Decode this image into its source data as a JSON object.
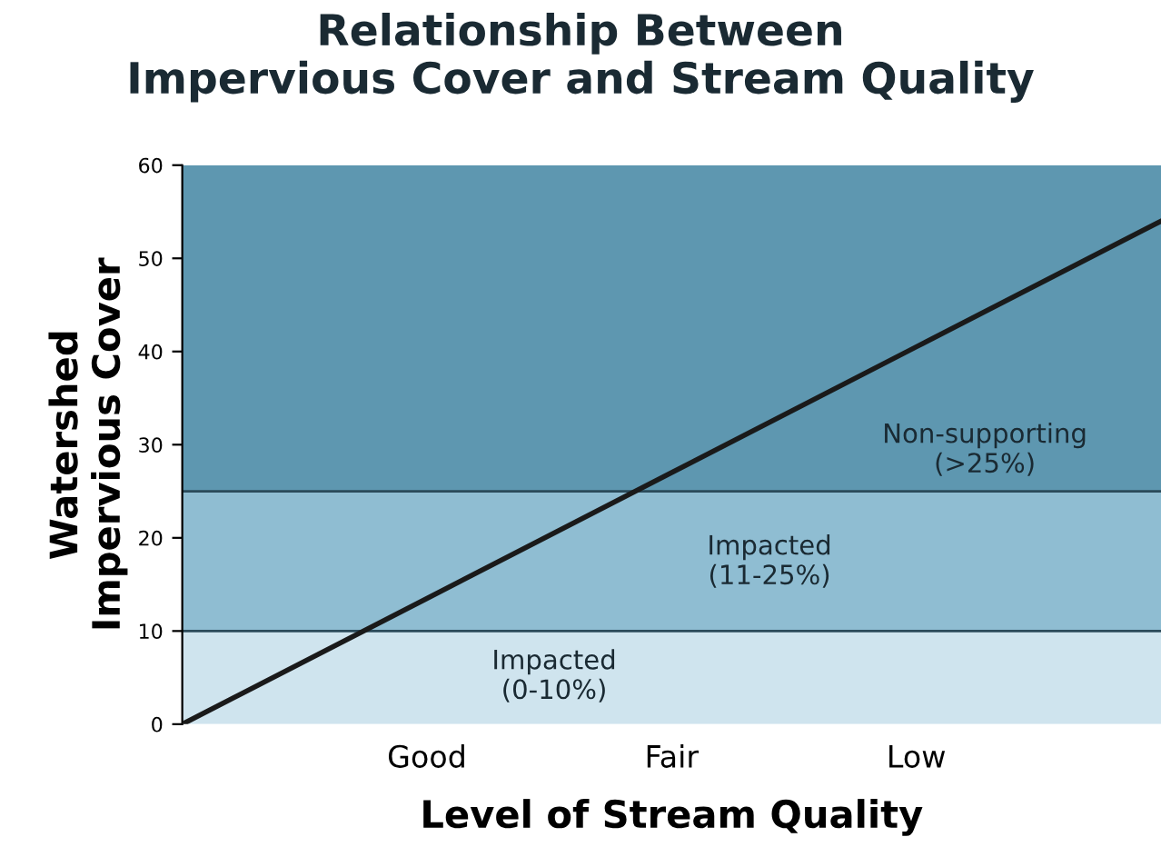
{
  "chart_data": {
    "type": "line",
    "title": "Relationship Between\nImpervious Cover and Stream Quality",
    "xlabel": "Level of Stream Quality",
    "ylabel": "Watershed\nImpervious Cover",
    "categories": [
      null,
      "Good",
      "Fair",
      "Low",
      null
    ],
    "ylim": [
      0,
      60
    ],
    "yticks": [
      0,
      10,
      20,
      30,
      40,
      50,
      60
    ],
    "series": [
      {
        "color": "#1a1a1a",
        "values": [
          0,
          13.5,
          27,
          40.5,
          54
        ]
      }
    ],
    "bands": [
      {
        "axis": "y",
        "from": 0,
        "to": 10,
        "color": "#cfe4ee",
        "label": "Impacted\n(0-10%)"
      },
      {
        "axis": "y",
        "from": 10,
        "to": 25,
        "color": "#8fbdd2",
        "label": "Impacted\n(11-25%)"
      },
      {
        "axis": "y",
        "from": 25,
        "to": 60,
        "color": "#5e97b0",
        "label": "Non-supporting\n(>25%)"
      }
    ],
    "ref_lines": [
      {
        "axis": "y",
        "value": 10,
        "color": "#2a4a5a"
      },
      {
        "axis": "y",
        "value": 25,
        "color": "#2a4a5a"
      }
    ],
    "grid": false,
    "legend": false,
    "marker": "none",
    "line_style": "solid"
  }
}
